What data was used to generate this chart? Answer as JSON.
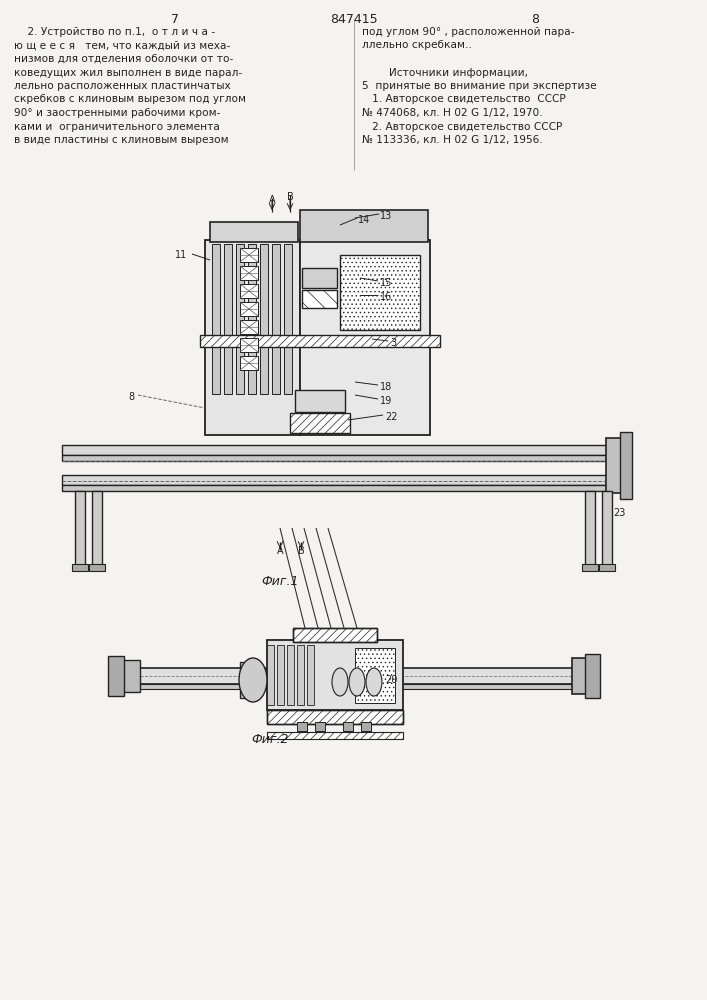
{
  "page_width": 7.07,
  "page_height": 10.0,
  "bg_color": "#f5f3ef",
  "text_color": "#222222",
  "line_color": "#222222",
  "top_left_num": "7",
  "top_center_num": "847415",
  "top_right_num": "8",
  "left_col_lines": [
    "    2. Устройство по п.1,  о т л и ч а -",
    "ю щ е е с я   тем, что каждый из меха-",
    "низмов для отделения оболочки от то-",
    "коведущих жил выполнен в виде парал-",
    "лельно расположенных пластинчатых",
    "скребков с клиновым вырезом под углом",
    "90° и заостренными рабочими кром-",
    "ками и  ограничительного элемента",
    "в виде пластины с клиновым вырезом"
  ],
  "right_col_lines": [
    "под углом 90° , расположенной пара-",
    "ллельно скребкам..",
    "",
    "        Источники информации,",
    "5  принятые во внимание при экспертизе",
    "   1. Авторское свидетельство  СССР",
    "№ 474068, кл. Н 02 G 1/12, 1970.",
    "   2. Авторское свидетельство СССР",
    "№ 113336, кл. Н 02 G 1/12, 1956."
  ],
  "fig1_caption": "Фиг.1",
  "fig2_caption": "Фиг.2"
}
